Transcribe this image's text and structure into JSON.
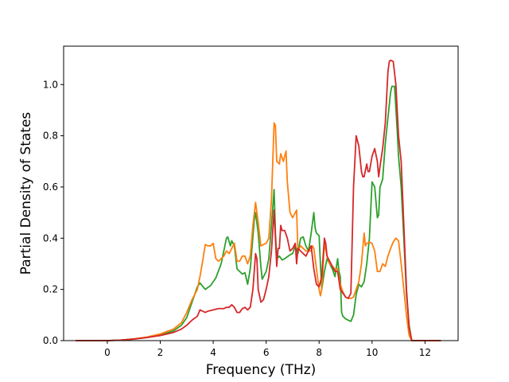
{
  "chart_data": {
    "type": "line",
    "title": "",
    "xlabel": "Frequency (THz)",
    "ylabel": "Partial Density of States",
    "xlim": [
      -1.65,
      13.25
    ],
    "ylim": [
      0.0,
      1.15
    ],
    "xticks": [
      0,
      2,
      4,
      6,
      8,
      10,
      12
    ],
    "yticks": [
      0.0,
      0.2,
      0.4,
      0.6,
      0.8,
      1.0
    ],
    "xtick_labels": [
      "0",
      "2",
      "4",
      "6",
      "8",
      "10",
      "12"
    ],
    "ytick_labels": [
      "0.0",
      "0.2",
      "0.4",
      "0.6",
      "0.8",
      "1.0"
    ],
    "grid": false,
    "legend": "none",
    "series": [
      {
        "color": "#2ca02c",
        "points": [
          [
            -1.2,
            0
          ],
          [
            0.0,
            0
          ],
          [
            0.5,
            0.002
          ],
          [
            1.0,
            0.006
          ],
          [
            1.5,
            0.012
          ],
          [
            2.0,
            0.022
          ],
          [
            2.5,
            0.038
          ],
          [
            2.8,
            0.06
          ],
          [
            3.0,
            0.09
          ],
          [
            3.2,
            0.15
          ],
          [
            3.4,
            0.21
          ],
          [
            3.5,
            0.225
          ],
          [
            3.7,
            0.2
          ],
          [
            3.9,
            0.215
          ],
          [
            4.1,
            0.245
          ],
          [
            4.3,
            0.3
          ],
          [
            4.4,
            0.35
          ],
          [
            4.5,
            0.4
          ],
          [
            4.55,
            0.405
          ],
          [
            4.65,
            0.37
          ],
          [
            4.7,
            0.39
          ],
          [
            4.8,
            0.37
          ],
          [
            4.9,
            0.28
          ],
          [
            5.0,
            0.27
          ],
          [
            5.1,
            0.26
          ],
          [
            5.2,
            0.265
          ],
          [
            5.3,
            0.22
          ],
          [
            5.4,
            0.28
          ],
          [
            5.55,
            0.47
          ],
          [
            5.6,
            0.5
          ],
          [
            5.7,
            0.42
          ],
          [
            5.8,
            0.29
          ],
          [
            5.85,
            0.24
          ],
          [
            6.0,
            0.27
          ],
          [
            6.1,
            0.32
          ],
          [
            6.2,
            0.45
          ],
          [
            6.3,
            0.59
          ],
          [
            6.35,
            0.42
          ],
          [
            6.4,
            0.32
          ],
          [
            6.5,
            0.33
          ],
          [
            6.6,
            0.315
          ],
          [
            6.7,
            0.32
          ],
          [
            6.9,
            0.335
          ],
          [
            7.0,
            0.34
          ],
          [
            7.1,
            0.37
          ],
          [
            7.2,
            0.34
          ],
          [
            7.3,
            0.4
          ],
          [
            7.4,
            0.405
          ],
          [
            7.5,
            0.37
          ],
          [
            7.6,
            0.35
          ],
          [
            7.7,
            0.42
          ],
          [
            7.8,
            0.5
          ],
          [
            7.85,
            0.44
          ],
          [
            7.9,
            0.42
          ],
          [
            8.0,
            0.41
          ],
          [
            8.05,
            0.3
          ],
          [
            8.1,
            0.2
          ],
          [
            8.2,
            0.27
          ],
          [
            8.3,
            0.32
          ],
          [
            8.4,
            0.3
          ],
          [
            8.5,
            0.28
          ],
          [
            8.6,
            0.25
          ],
          [
            8.7,
            0.32
          ],
          [
            8.75,
            0.27
          ],
          [
            8.8,
            0.25
          ],
          [
            8.85,
            0.11
          ],
          [
            8.9,
            0.095
          ],
          [
            9.0,
            0.085
          ],
          [
            9.1,
            0.08
          ],
          [
            9.2,
            0.075
          ],
          [
            9.3,
            0.1
          ],
          [
            9.4,
            0.18
          ],
          [
            9.5,
            0.22
          ],
          [
            9.6,
            0.21
          ],
          [
            9.7,
            0.23
          ],
          [
            9.8,
            0.3
          ],
          [
            9.9,
            0.4
          ],
          [
            10.0,
            0.62
          ],
          [
            10.1,
            0.6
          ],
          [
            10.2,
            0.48
          ],
          [
            10.25,
            0.49
          ],
          [
            10.3,
            0.6
          ],
          [
            10.4,
            0.63
          ],
          [
            10.5,
            0.77
          ],
          [
            10.6,
            0.87
          ],
          [
            10.7,
            0.97
          ],
          [
            10.75,
            0.993
          ],
          [
            10.85,
            0.993
          ],
          [
            10.95,
            0.82
          ],
          [
            11.0,
            0.72
          ],
          [
            11.1,
            0.6
          ],
          [
            11.2,
            0.4
          ],
          [
            11.3,
            0.18
          ],
          [
            11.4,
            0.06
          ],
          [
            11.5,
            0.0
          ],
          [
            12.6,
            0
          ]
        ]
      },
      {
        "color": "#ff7f0e",
        "points": [
          [
            -1.2,
            0
          ],
          [
            0.0,
            0
          ],
          [
            0.5,
            0.002
          ],
          [
            1.0,
            0.007
          ],
          [
            1.5,
            0.014
          ],
          [
            2.0,
            0.026
          ],
          [
            2.5,
            0.045
          ],
          [
            2.8,
            0.07
          ],
          [
            3.0,
            0.11
          ],
          [
            3.2,
            0.16
          ],
          [
            3.4,
            0.2
          ],
          [
            3.5,
            0.25
          ],
          [
            3.6,
            0.31
          ],
          [
            3.7,
            0.375
          ],
          [
            3.8,
            0.37
          ],
          [
            3.9,
            0.37
          ],
          [
            4.0,
            0.38
          ],
          [
            4.1,
            0.32
          ],
          [
            4.2,
            0.31
          ],
          [
            4.3,
            0.32
          ],
          [
            4.4,
            0.33
          ],
          [
            4.5,
            0.35
          ],
          [
            4.6,
            0.34
          ],
          [
            4.7,
            0.36
          ],
          [
            4.8,
            0.38
          ],
          [
            4.9,
            0.31
          ],
          [
            5.0,
            0.31
          ],
          [
            5.1,
            0.33
          ],
          [
            5.2,
            0.33
          ],
          [
            5.3,
            0.3
          ],
          [
            5.4,
            0.33
          ],
          [
            5.5,
            0.45
          ],
          [
            5.6,
            0.54
          ],
          [
            5.7,
            0.46
          ],
          [
            5.8,
            0.37
          ],
          [
            6.0,
            0.38
          ],
          [
            6.1,
            0.4
          ],
          [
            6.2,
            0.55
          ],
          [
            6.25,
            0.7
          ],
          [
            6.3,
            0.85
          ],
          [
            6.35,
            0.84
          ],
          [
            6.4,
            0.7
          ],
          [
            6.5,
            0.69
          ],
          [
            6.55,
            0.73
          ],
          [
            6.65,
            0.7
          ],
          [
            6.75,
            0.74
          ],
          [
            6.8,
            0.62
          ],
          [
            6.9,
            0.5
          ],
          [
            7.0,
            0.48
          ],
          [
            7.1,
            0.5
          ],
          [
            7.15,
            0.51
          ],
          [
            7.2,
            0.35
          ],
          [
            7.3,
            0.37
          ],
          [
            7.4,
            0.36
          ],
          [
            7.5,
            0.35
          ],
          [
            7.6,
            0.35
          ],
          [
            7.7,
            0.35
          ],
          [
            7.75,
            0.37
          ],
          [
            7.8,
            0.36
          ],
          [
            7.9,
            0.28
          ],
          [
            8.0,
            0.2
          ],
          [
            8.05,
            0.175
          ],
          [
            8.1,
            0.2
          ],
          [
            8.2,
            0.38
          ],
          [
            8.3,
            0.33
          ],
          [
            8.4,
            0.3
          ],
          [
            8.5,
            0.29
          ],
          [
            8.6,
            0.28
          ],
          [
            8.7,
            0.28
          ],
          [
            8.8,
            0.22
          ],
          [
            8.9,
            0.19
          ],
          [
            9.0,
            0.17
          ],
          [
            9.1,
            0.165
          ],
          [
            9.2,
            0.165
          ],
          [
            9.3,
            0.17
          ],
          [
            9.4,
            0.2
          ],
          [
            9.5,
            0.23
          ],
          [
            9.6,
            0.3
          ],
          [
            9.7,
            0.42
          ],
          [
            9.75,
            0.37
          ],
          [
            9.8,
            0.38
          ],
          [
            9.9,
            0.385
          ],
          [
            10.0,
            0.38
          ],
          [
            10.1,
            0.35
          ],
          [
            10.2,
            0.27
          ],
          [
            10.3,
            0.27
          ],
          [
            10.4,
            0.3
          ],
          [
            10.5,
            0.29
          ],
          [
            10.6,
            0.33
          ],
          [
            10.7,
            0.36
          ],
          [
            10.8,
            0.385
          ],
          [
            10.9,
            0.4
          ],
          [
            11.0,
            0.39
          ],
          [
            11.1,
            0.3
          ],
          [
            11.2,
            0.2
          ],
          [
            11.3,
            0.1
          ],
          [
            11.4,
            0.02
          ],
          [
            11.5,
            0.0
          ],
          [
            12.6,
            0
          ]
        ]
      },
      {
        "color": "#d62728",
        "points": [
          [
            -1.2,
            0
          ],
          [
            0.0,
            0
          ],
          [
            0.5,
            0.002
          ],
          [
            1.0,
            0.006
          ],
          [
            1.5,
            0.012
          ],
          [
            2.0,
            0.02
          ],
          [
            2.5,
            0.032
          ],
          [
            2.8,
            0.045
          ],
          [
            3.0,
            0.06
          ],
          [
            3.2,
            0.08
          ],
          [
            3.4,
            0.095
          ],
          [
            3.5,
            0.12
          ],
          [
            3.6,
            0.115
          ],
          [
            3.7,
            0.11
          ],
          [
            3.8,
            0.115
          ],
          [
            4.0,
            0.12
          ],
          [
            4.2,
            0.125
          ],
          [
            4.4,
            0.125
          ],
          [
            4.5,
            0.13
          ],
          [
            4.6,
            0.13
          ],
          [
            4.7,
            0.14
          ],
          [
            4.8,
            0.13
          ],
          [
            4.9,
            0.11
          ],
          [
            5.0,
            0.11
          ],
          [
            5.1,
            0.125
          ],
          [
            5.2,
            0.13
          ],
          [
            5.3,
            0.12
          ],
          [
            5.4,
            0.13
          ],
          [
            5.5,
            0.2
          ],
          [
            5.6,
            0.34
          ],
          [
            5.65,
            0.32
          ],
          [
            5.7,
            0.2
          ],
          [
            5.8,
            0.15
          ],
          [
            5.9,
            0.16
          ],
          [
            6.0,
            0.2
          ],
          [
            6.1,
            0.25
          ],
          [
            6.2,
            0.35
          ],
          [
            6.3,
            0.51
          ],
          [
            6.35,
            0.4
          ],
          [
            6.4,
            0.29
          ],
          [
            6.45,
            0.36
          ],
          [
            6.5,
            0.36
          ],
          [
            6.55,
            0.45
          ],
          [
            6.6,
            0.43
          ],
          [
            6.7,
            0.43
          ],
          [
            6.8,
            0.4
          ],
          [
            6.9,
            0.35
          ],
          [
            7.0,
            0.36
          ],
          [
            7.1,
            0.38
          ],
          [
            7.15,
            0.3
          ],
          [
            7.2,
            0.36
          ],
          [
            7.3,
            0.35
          ],
          [
            7.4,
            0.34
          ],
          [
            7.5,
            0.33
          ],
          [
            7.6,
            0.35
          ],
          [
            7.7,
            0.37
          ],
          [
            7.8,
            0.28
          ],
          [
            7.9,
            0.22
          ],
          [
            8.0,
            0.21
          ],
          [
            8.1,
            0.25
          ],
          [
            8.2,
            0.4
          ],
          [
            8.25,
            0.38
          ],
          [
            8.3,
            0.33
          ],
          [
            8.4,
            0.31
          ],
          [
            8.5,
            0.29
          ],
          [
            8.6,
            0.27
          ],
          [
            8.7,
            0.27
          ],
          [
            8.8,
            0.2
          ],
          [
            8.9,
            0.185
          ],
          [
            9.0,
            0.17
          ],
          [
            9.1,
            0.165
          ],
          [
            9.2,
            0.185
          ],
          [
            9.3,
            0.6
          ],
          [
            9.4,
            0.8
          ],
          [
            9.5,
            0.76
          ],
          [
            9.6,
            0.66
          ],
          [
            9.65,
            0.64
          ],
          [
            9.7,
            0.64
          ],
          [
            9.8,
            0.69
          ],
          [
            9.85,
            0.66
          ],
          [
            9.9,
            0.66
          ],
          [
            10.0,
            0.72
          ],
          [
            10.1,
            0.75
          ],
          [
            10.2,
            0.7
          ],
          [
            10.25,
            0.64
          ],
          [
            10.3,
            0.68
          ],
          [
            10.4,
            0.75
          ],
          [
            10.5,
            0.85
          ],
          [
            10.6,
            1.05
          ],
          [
            10.65,
            1.09
          ],
          [
            10.7,
            1.095
          ],
          [
            10.8,
            1.09
          ],
          [
            10.9,
            1.0
          ],
          [
            11.0,
            0.8
          ],
          [
            11.1,
            0.7
          ],
          [
            11.2,
            0.45
          ],
          [
            11.3,
            0.2
          ],
          [
            11.4,
            0.05
          ],
          [
            11.5,
            0.0
          ],
          [
            12.6,
            0
          ]
        ]
      }
    ]
  }
}
